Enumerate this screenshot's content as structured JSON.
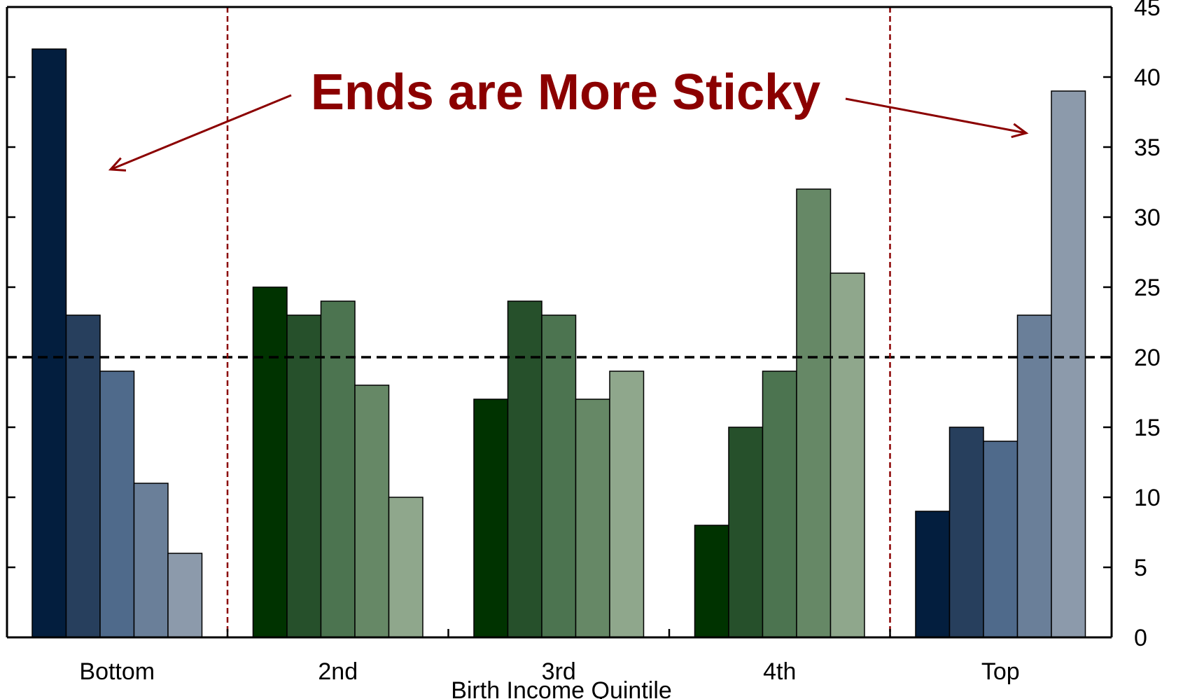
{
  "chart_data": {
    "type": "bar",
    "title": "",
    "xlabel": "Birth Income Quintile",
    "ylabel": "",
    "ylim": [
      0,
      45
    ],
    "yticks": [
      0,
      5,
      10,
      15,
      20,
      25,
      30,
      35,
      40,
      45
    ],
    "yaxis_side": "right",
    "categories": [
      "Bottom",
      "2nd",
      "3rd",
      "4th",
      "Top"
    ],
    "series": [
      {
        "values": [
          42,
          25,
          17,
          8,
          9
        ]
      },
      {
        "values": [
          23,
          23,
          24,
          15,
          15
        ]
      },
      {
        "values": [
          19,
          24,
          23,
          19,
          14
        ]
      },
      {
        "values": [
          11,
          18,
          17,
          32,
          23
        ]
      },
      {
        "values": [
          6,
          10,
          19,
          26,
          39
        ]
      }
    ],
    "group_colors": [
      [
        "#031e3e",
        "#273f5d",
        "#4f6a8b",
        "#6a7f99",
        "#8c9aab"
      ],
      [
        "#003300",
        "#26502b",
        "#4c7450",
        "#668866",
        "#8fa78c"
      ],
      [
        "#003300",
        "#26502b",
        "#4c7450",
        "#668866",
        "#8fa78c"
      ],
      [
        "#003300",
        "#26502b",
        "#4c7450",
        "#668866",
        "#8fa78c"
      ],
      [
        "#031e3e",
        "#273f5d",
        "#4f6a8b",
        "#6a7f99",
        "#8c9aab"
      ]
    ],
    "reference_line": {
      "y": 20,
      "style": "dashed",
      "color": "#000000"
    },
    "separators_after_categories": [
      "Bottom",
      "4th"
    ],
    "separator_color": "#8b0000",
    "annotation": {
      "text": "Ends are More Sticky",
      "color": "#8b0000",
      "arrows_to": [
        "Bottom",
        "Top"
      ]
    }
  }
}
